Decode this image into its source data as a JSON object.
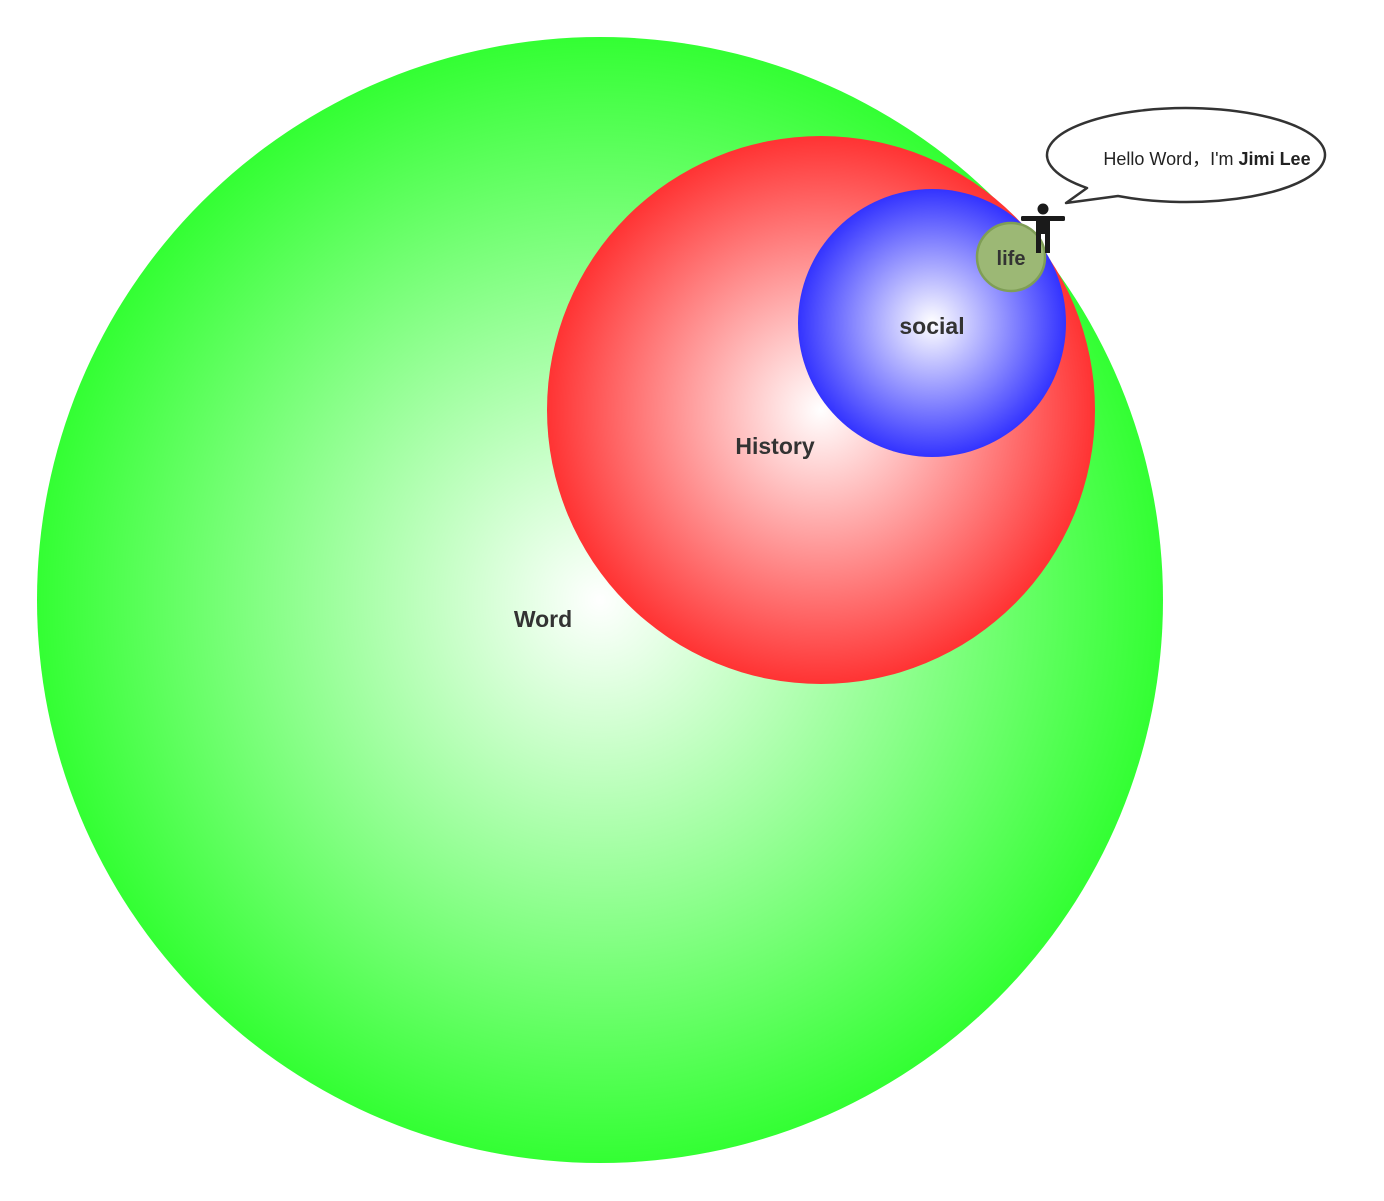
{
  "colors": {
    "world": "#33ff33",
    "history": "#ff3333",
    "social": "#3333ff",
    "life": "#9cb875",
    "life_border": "#7f9e56",
    "label": "#333333",
    "person": "#1a1a1a",
    "bubble_border": "#333333"
  },
  "circles": {
    "world": {
      "label": "Word"
    },
    "history": {
      "label": "History"
    },
    "social": {
      "label": "social"
    },
    "life": {
      "label": "life"
    }
  },
  "person": {
    "icon": "person-icon"
  },
  "callout": {
    "prefix": "Hello Word，I'm",
    "name": "Jimi Lee"
  }
}
